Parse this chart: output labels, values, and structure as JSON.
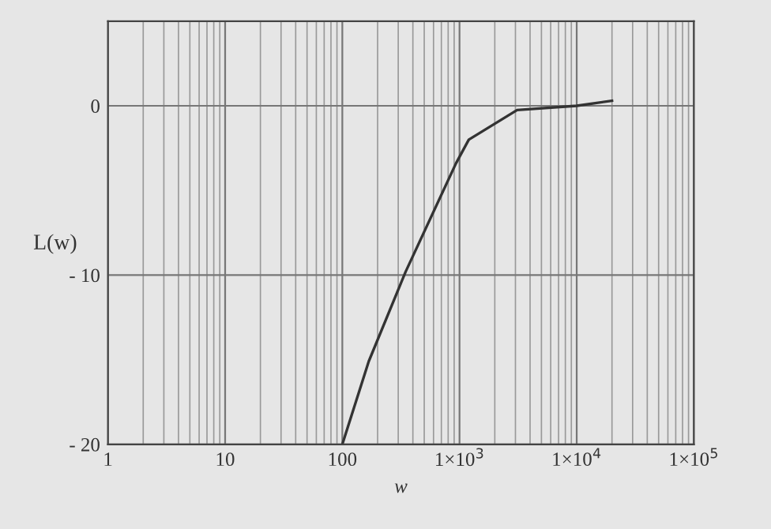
{
  "chart_data": {
    "type": "line",
    "xlabel": "w",
    "ylabel": "L(w)",
    "log": "x",
    "grid": true,
    "x": [
      100,
      168,
      347,
      933,
      1200,
      3100,
      10000,
      20000
    ],
    "series": [
      {
        "color": "#333333",
        "values": [
          -20,
          -15.1,
          -9.8,
          -3.4,
          -2.0,
          -0.25,
          0,
          0.3
        ]
      }
    ],
    "xlim": [
      1,
      100000
    ],
    "ylim": [
      -20,
      5
    ],
    "xticks": [
      1,
      10,
      100,
      {
        "value": 1000,
        "label": "1×10$^{3}$"
      },
      {
        "value": 10000,
        "label": "1×10$^{4}$"
      },
      {
        "value": 100000,
        "label": "1×10$^{5}$"
      }
    ],
    "yticks": [
      {
        "value": -20,
        "label": "- 20"
      },
      {
        "value": -10,
        "label": "- 10"
      },
      0
    ],
    "line_style": "solid",
    "marker": "none"
  }
}
